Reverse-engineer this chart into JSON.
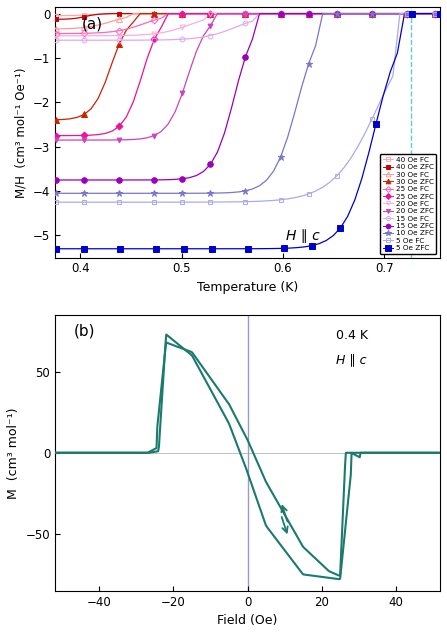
{
  "panel_a": {
    "title": "(a)",
    "xlabel": "Temperature (K)",
    "ylabel": "M/H  (cm³ mol⁻¹ Oe⁻¹)",
    "xlim": [
      0.375,
      0.755
    ],
    "ylim": [
      -5.5,
      0.15
    ],
    "dashed_line_x": 0.726,
    "dashed_line_color": "#5ecece",
    "Hc_annotation": "H ∥ c",
    "xticks": [
      0.4,
      0.5,
      0.6,
      0.7
    ],
    "yticks": [
      0,
      -1,
      -2,
      -3,
      -4,
      -5
    ]
  },
  "panel_b": {
    "title": "(b)",
    "xlabel": "Field (Oe)",
    "ylabel": "M  (cm³ mol⁻¹)",
    "xlim": [
      -52,
      52
    ],
    "ylim": [
      -85,
      85
    ],
    "annotation1": "0.4 K",
    "annotation2": "H ∥ c",
    "color": "#1a7a6e",
    "vline_x": 0,
    "vline_color": "#9999cc",
    "hline_color": "#aaaaaa",
    "xticks": [
      -40,
      -20,
      0,
      20,
      40
    ],
    "yticks": [
      -50,
      0,
      50
    ]
  },
  "series_cfg": [
    {
      "key": "40FC",
      "label": "40 Oe FC",
      "color": "#ffaaaa",
      "marker": "s",
      "ms": 3.5,
      "filled": false,
      "Tc": 0.413,
      "ylow": -0.12,
      "yFC": -0.05,
      "sh": 80,
      "T_end": 0.75
    },
    {
      "key": "40ZFC",
      "label": "40 Oe ZFC",
      "color": "#cc0000",
      "marker": "s",
      "ms": 3.5,
      "filled": true,
      "Tc": 0.413,
      "ylow": -0.13,
      "yFC": -0.13,
      "sh": 80,
      "T_end": 0.75
    },
    {
      "key": "30FC",
      "label": "30 Oe FC",
      "color": "#ff9999",
      "marker": "^",
      "ms": 4,
      "filled": false,
      "Tc": 0.435,
      "ylow": -0.4,
      "yFC": -0.35,
      "sh": 65,
      "T_end": 0.75
    },
    {
      "key": "30ZFC",
      "label": "30 Oe ZFC",
      "color": "#cc2200",
      "marker": "^",
      "ms": 4,
      "filled": true,
      "Tc": 0.438,
      "ylow": -2.4,
      "yFC": -2.4,
      "sh": 55,
      "T_end": 0.75
    },
    {
      "key": "25FC",
      "label": "25 Oe FC",
      "color": "#ff66bb",
      "marker": "D",
      "ms": 3.5,
      "filled": false,
      "Tc": 0.467,
      "ylow": -0.5,
      "yFC": -0.45,
      "sh": 60,
      "T_end": 0.75
    },
    {
      "key": "25ZFC",
      "label": "25 Oe ZFC",
      "color": "#ee1199",
      "marker": "D",
      "ms": 3.5,
      "filled": true,
      "Tc": 0.469,
      "ylow": -2.75,
      "yFC": -2.75,
      "sh": 55,
      "T_end": 0.75
    },
    {
      "key": "20FC",
      "label": "20 Oe FC",
      "color": "#ffaadd",
      "marker": "v",
      "ms": 3.5,
      "filled": false,
      "Tc": 0.512,
      "ylow": -0.55,
      "yFC": -0.5,
      "sh": 55,
      "T_end": 0.75
    },
    {
      "key": "20ZFC",
      "label": "20 Oe ZFC",
      "color": "#cc44bb",
      "marker": "v",
      "ms": 3.5,
      "filled": true,
      "Tc": 0.514,
      "ylow": -2.85,
      "yFC": -2.85,
      "sh": 50,
      "T_end": 0.75
    },
    {
      "key": "15FC",
      "label": "15 Oe FC",
      "color": "#ddaaee",
      "marker": "o",
      "ms": 3.5,
      "filled": false,
      "Tc": 0.558,
      "ylow": -0.65,
      "yFC": -0.6,
      "sh": 50,
      "T_end": 0.75
    },
    {
      "key": "15ZFC",
      "label": "15 Oe ZFC",
      "color": "#9900bb",
      "marker": "o",
      "ms": 4,
      "filled": true,
      "Tc": 0.56,
      "ylow": -3.75,
      "yFC": -3.75,
      "sh": 48,
      "T_end": 0.75
    },
    {
      "key": "10ZFC",
      "label": "10 Oe ZFC",
      "color": "#7777cc",
      "marker": "*",
      "ms": 5,
      "filled": true,
      "Tc": 0.622,
      "ylow": -4.05,
      "yFC": -4.05,
      "sh": 42,
      "T_end": 0.75
    },
    {
      "key": "5FC",
      "label": "5 Oe FC",
      "color": "#aaaaee",
      "marker": "s",
      "ms": 3.5,
      "filled": false,
      "Tc": 0.697,
      "ylow": -4.3,
      "yFC": -4.25,
      "sh": 38,
      "T_end": 0.75
    },
    {
      "key": "5ZFC",
      "label": "5 Oe ZFC",
      "color": "#0000cc",
      "marker": "s",
      "ms": 4.5,
      "filled": true,
      "Tc": 0.698,
      "ylow": -5.3,
      "yFC": -5.3,
      "sh": 35,
      "T_end": 0.755
    }
  ]
}
